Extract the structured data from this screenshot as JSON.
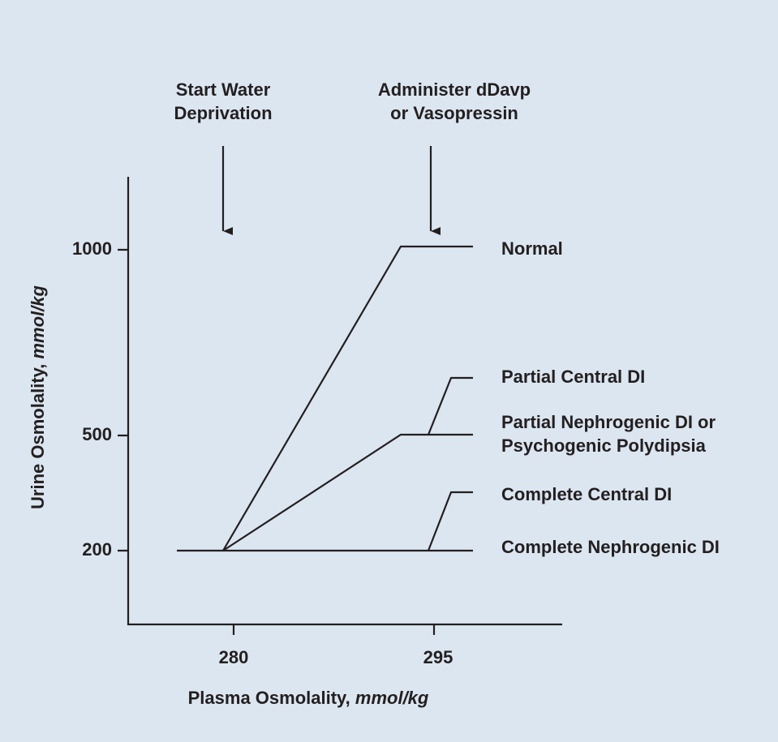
{
  "annotations": [
    {
      "lines": [
        "Start Water",
        "Deprivation"
      ]
    },
    {
      "lines": [
        "Administer dDavp",
        "or Vasopressin"
      ]
    }
  ],
  "y_axis": {
    "label": "Urine Osmolality,",
    "unit": "mmol/kg",
    "ticks": [
      "1000",
      "500",
      "200"
    ]
  },
  "x_axis": {
    "label": "Plasma Osmolality,",
    "unit": "mmol/kg",
    "ticks": [
      "280",
      "295"
    ]
  },
  "curves": [
    {
      "lines": [
        "Normal"
      ]
    },
    {
      "lines": [
        "Partial Central DI"
      ]
    },
    {
      "lines": [
        "Partial Nephrogenic DI or",
        "Psychogenic Polydipsia"
      ]
    },
    {
      "lines": [
        "Complete Central DI"
      ]
    },
    {
      "lines": [
        "Complete Nephrogenic DI"
      ]
    }
  ]
}
